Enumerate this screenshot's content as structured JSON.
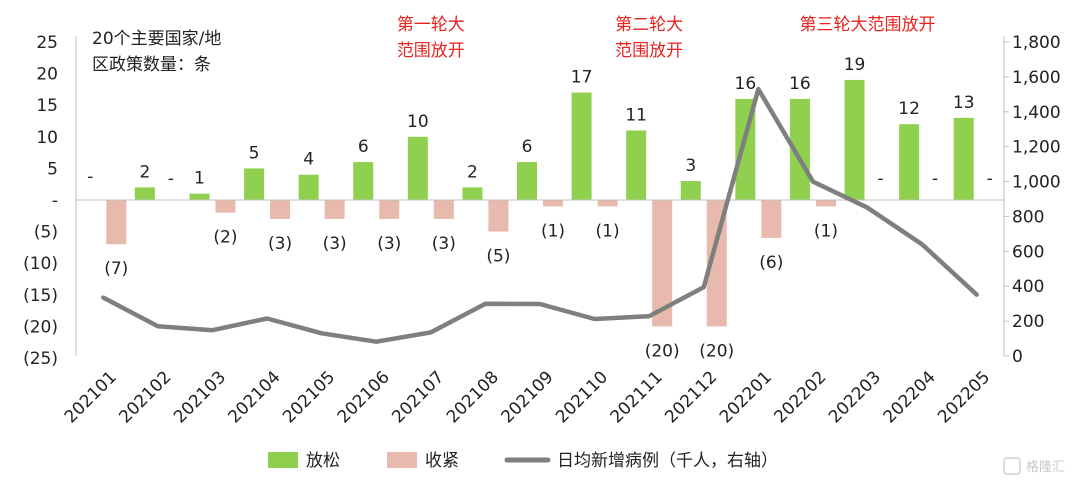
{
  "chart_data": {
    "type": "bar+line",
    "categories": [
      "202101",
      "202102",
      "202103",
      "202104",
      "202105",
      "202106",
      "202107",
      "202108",
      "202109",
      "202110",
      "202111",
      "202112",
      "202201",
      "202202",
      "202203",
      "202204",
      "202205"
    ],
    "series": [
      {
        "name": "放松",
        "type": "bar",
        "axis": "left",
        "color": "#8fd14f",
        "values": [
          0,
          2,
          1,
          5,
          4,
          6,
          10,
          2,
          6,
          17,
          11,
          3,
          16,
          16,
          19,
          12,
          13
        ],
        "labels": [
          "-",
          "2",
          "1",
          "5",
          "4",
          "6",
          "10",
          "2",
          "6",
          "17",
          "11",
          "3",
          "16",
          "16",
          "19",
          "12",
          "13"
        ]
      },
      {
        "name": "收紧",
        "type": "bar",
        "axis": "left",
        "color": "#e8b9ad",
        "values": [
          -7,
          0,
          -2,
          -3,
          -3,
          -3,
          -3,
          -5,
          -1,
          -1,
          -20,
          -20,
          -6,
          -1,
          0,
          0,
          0
        ],
        "labels": [
          "(7)",
          "-",
          "(2)",
          "(3)",
          "(3)",
          "(3)",
          "(3)",
          "(5)",
          "(1)",
          "(1)",
          "(20)",
          "(20)",
          "(6)",
          "(1)",
          "-",
          "-",
          "-"
        ]
      },
      {
        "name": "日均新增病例（千人，右轴）",
        "type": "line",
        "axis": "right",
        "color": "#7f7f7f",
        "values": [
          335,
          170,
          148,
          215,
          130,
          82,
          135,
          300,
          298,
          212,
          228,
          395,
          1530,
          1000,
          850,
          640,
          352
        ]
      }
    ],
    "ylim_left": [
      -25,
      25
    ],
    "yticks_left": [
      25,
      20,
      15,
      10,
      5,
      0,
      -5,
      -10,
      -15,
      -20,
      -25
    ],
    "yticklabels_left": [
      "25",
      "20",
      "15",
      "10",
      "5",
      "-",
      "(5)",
      "(10)",
      "(15)",
      "(20)",
      "(25)"
    ],
    "ylim_right": [
      0,
      1800
    ],
    "yticks_right": [
      1800,
      1600,
      1400,
      1200,
      1000,
      800,
      600,
      400,
      200,
      0
    ],
    "yticklabels_right": [
      "1,800",
      "1,600",
      "1,400",
      "1,200",
      "1,000",
      "800",
      "600",
      "400",
      "200",
      "0"
    ],
    "ylabel_left": [
      "20个主要国家/地",
      "区政策数量：条"
    ],
    "annotations": [
      {
        "lines": [
          "第一轮大",
          "范围放开"
        ],
        "at": "202107",
        "color": "#e8231f"
      },
      {
        "lines": [
          "第二轮大",
          "范围放开"
        ],
        "at": "202111",
        "color": "#e8231f"
      },
      {
        "lines": [
          "第三轮大范围放开"
        ],
        "at": "202203",
        "color": "#e8231f"
      }
    ],
    "legend_position": "bottom",
    "watermark": "格隆汇"
  }
}
